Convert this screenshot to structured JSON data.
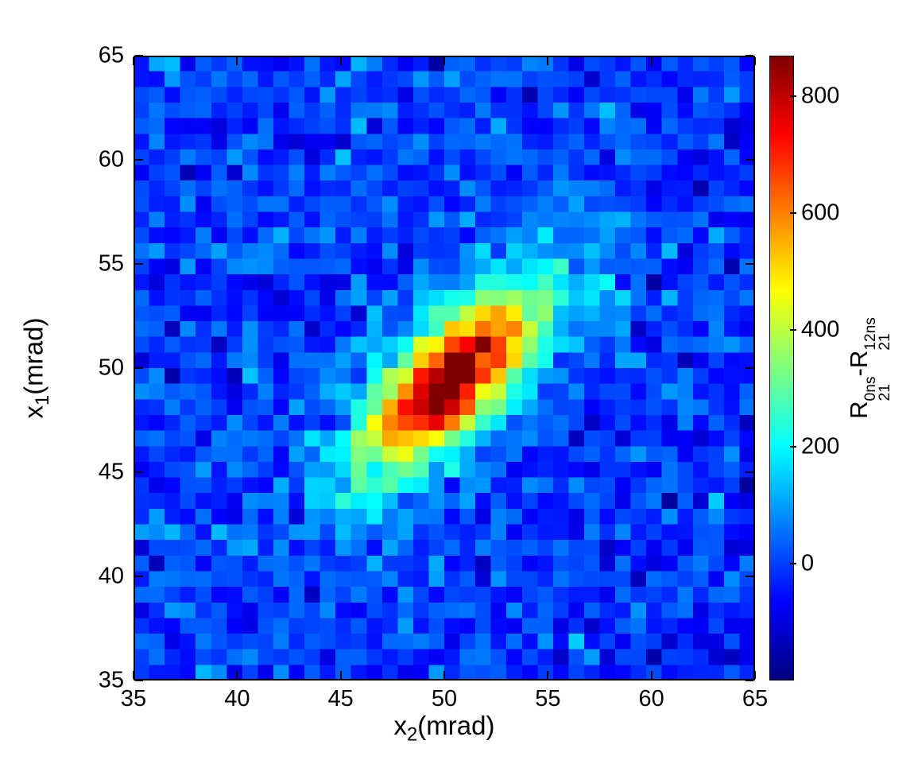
{
  "figure": {
    "background": "#ffffff",
    "frame_color": "#000000"
  },
  "chart_data": {
    "type": "heatmap",
    "title": "",
    "xlabel": {
      "base": "x",
      "sub": "2",
      "unit": "(mrad)"
    },
    "ylabel": {
      "base": "x",
      "sub": "1",
      "unit": "(mrad)"
    },
    "x_range": [
      35,
      65
    ],
    "y_range": [
      35,
      65
    ],
    "x_ticks": [
      35,
      40,
      45,
      50,
      55,
      60,
      65
    ],
    "y_ticks": [
      35,
      40,
      45,
      50,
      55,
      60,
      65
    ],
    "bins_x": 40,
    "bins_y": 40,
    "grid": false,
    "colormap": "jet",
    "colorbar": {
      "position": "right",
      "ticks": [
        0,
        200,
        400,
        600,
        800
      ],
      "vmin": -200,
      "vmax": 870,
      "label": {
        "r1": "R",
        "sup1": "0ns",
        "sub1": "21",
        "minus": "-",
        "r2": "R",
        "sup2": "12ns",
        "sub2": "21"
      }
    },
    "distribution": {
      "description": "Elongated 2D Gaussian correlation ridge along the x1=x2 diagonal over a noisy near-zero blue background; dark-red core near (50,49.5) peaking around 850-870 counts",
      "components": [
        {
          "amplitude": 700,
          "center_x": 50.3,
          "center_y": 49.4,
          "sigma_major": 3.4,
          "sigma_minor": 1.3,
          "angle_deg": 45
        },
        {
          "amplitude": 250,
          "center_x": 50.3,
          "center_y": 49.4,
          "sigma_major": 5.8,
          "sigma_minor": 2.5,
          "angle_deg": 45
        }
      ],
      "background_level": -10,
      "noise_sigma": 55,
      "noise_seed": 13,
      "peak_value": 870
    }
  }
}
